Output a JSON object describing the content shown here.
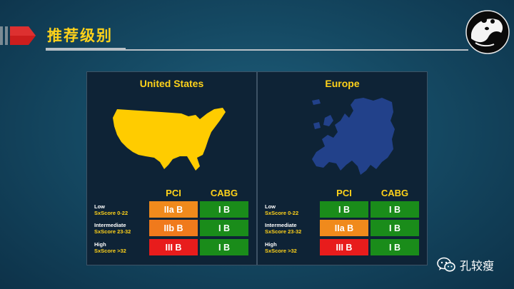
{
  "slide": {
    "title": "推荐级别"
  },
  "panels": [
    {
      "title": "United States",
      "columns": [
        "PCI",
        "CABG"
      ],
      "rows": [
        {
          "risk": "Low",
          "score": "SxScore 0-22",
          "pci": "IIa B",
          "cabg": "I B"
        },
        {
          "risk": "Intermediate",
          "score": "SxScore 23-32",
          "pci": "IIb B",
          "cabg": "I B"
        },
        {
          "risk": "High",
          "score": "SxScore >32",
          "pci": "III B",
          "cabg": "I B"
        }
      ]
    },
    {
      "title": "Europe",
      "columns": [
        "PCI",
        "CABG"
      ],
      "rows": [
        {
          "risk": "Low",
          "score": "SxScore 0-22",
          "pci": "I B",
          "cabg": "I B"
        },
        {
          "risk": "Intermediate",
          "score": "SxScore 23-32",
          "pci": "IIa B",
          "cabg": "I B"
        },
        {
          "risk": "High",
          "score": "SxScore >32",
          "pci": "III B",
          "cabg": "I B"
        }
      ]
    }
  ],
  "watermark": {
    "text": "孔较瘦",
    "icon": "wechat-icon"
  },
  "colors": {
    "class_I": "#1a8c1a",
    "class_IIa": "#f08a1c",
    "class_IIb": "#f07a1c",
    "class_III": "#e81c1c",
    "accent_yellow": "#ffd21a",
    "us_map": "#ffcc00",
    "eu_map": "#22418a"
  }
}
